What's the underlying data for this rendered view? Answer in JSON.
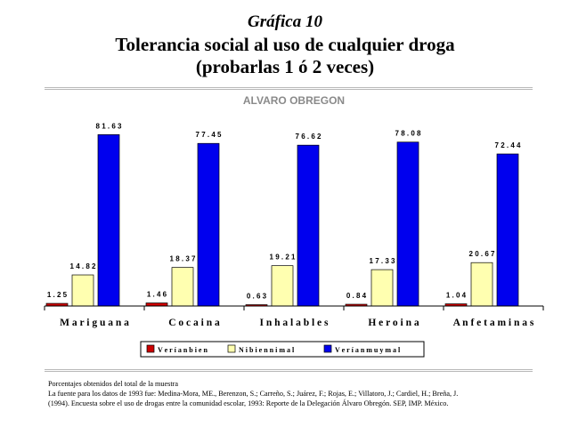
{
  "header": {
    "kicker": "Gráfica 10",
    "title_line1": "Tolerancia social al uso de cualquier droga",
    "title_line2": "(probarlas 1 ó 2 veces)"
  },
  "chart_data": {
    "type": "bar",
    "title": "ALVARO OBREGON",
    "categories": [
      "M a r i g u a n a",
      "C o c a i n a",
      "I n h a l a b l e s",
      "H e r o i n a",
      "A n f e t a m i n a s"
    ],
    "series": [
      {
        "name": "V e r í a n  b i e n",
        "color": "#cc0000",
        "values": [
          1.25,
          1.46,
          0.63,
          0.84,
          1.04
        ]
      },
      {
        "name": "N i  b i e n  n i  m a l",
        "color": "#ffffb0",
        "values": [
          14.82,
          18.37,
          19.21,
          17.33,
          20.67
        ]
      },
      {
        "name": "V e r í a n  m u y  m a l",
        "color": "#0000ee",
        "values": [
          81.63,
          77.45,
          76.62,
          78.08,
          72.44
        ]
      }
    ],
    "data_labels": [
      [
        "1 . 2 5",
        "1 4 . 8 2",
        "8 1 . 6 3"
      ],
      [
        "1 . 4 6",
        "1 8 . 3 7",
        "7 7 . 4 5"
      ],
      [
        "0 . 6 3",
        "1 9 . 2 1",
        "7 6 . 6 2"
      ],
      [
        "0 . 8 4",
        "1 7 . 3 3",
        "7 8 . 0 8"
      ],
      [
        "1 . 0 4",
        "2 0 . 6 7",
        "7 2 . 4 4"
      ]
    ],
    "ylim": [
      0,
      90
    ],
    "grid": false,
    "legend_position": "bottom"
  },
  "notes": {
    "line1": "Porcentajes obtenidos del total de la muestra",
    "line2": "La fuente para los datos de 1993 fue: Medina-Mora, ME., Berenzon, S.; Carreño, S.; Juárez, F.; Rojas, E.; Villatoro, J.; Cardiel, H.; Breña, J.",
    "line3": "(1994). Encuesta sobre el uso de drogas entre la comunidad escolar, 1993: Reporte de la Delegación Álvaro Obregón. SEP, IMP. México."
  }
}
